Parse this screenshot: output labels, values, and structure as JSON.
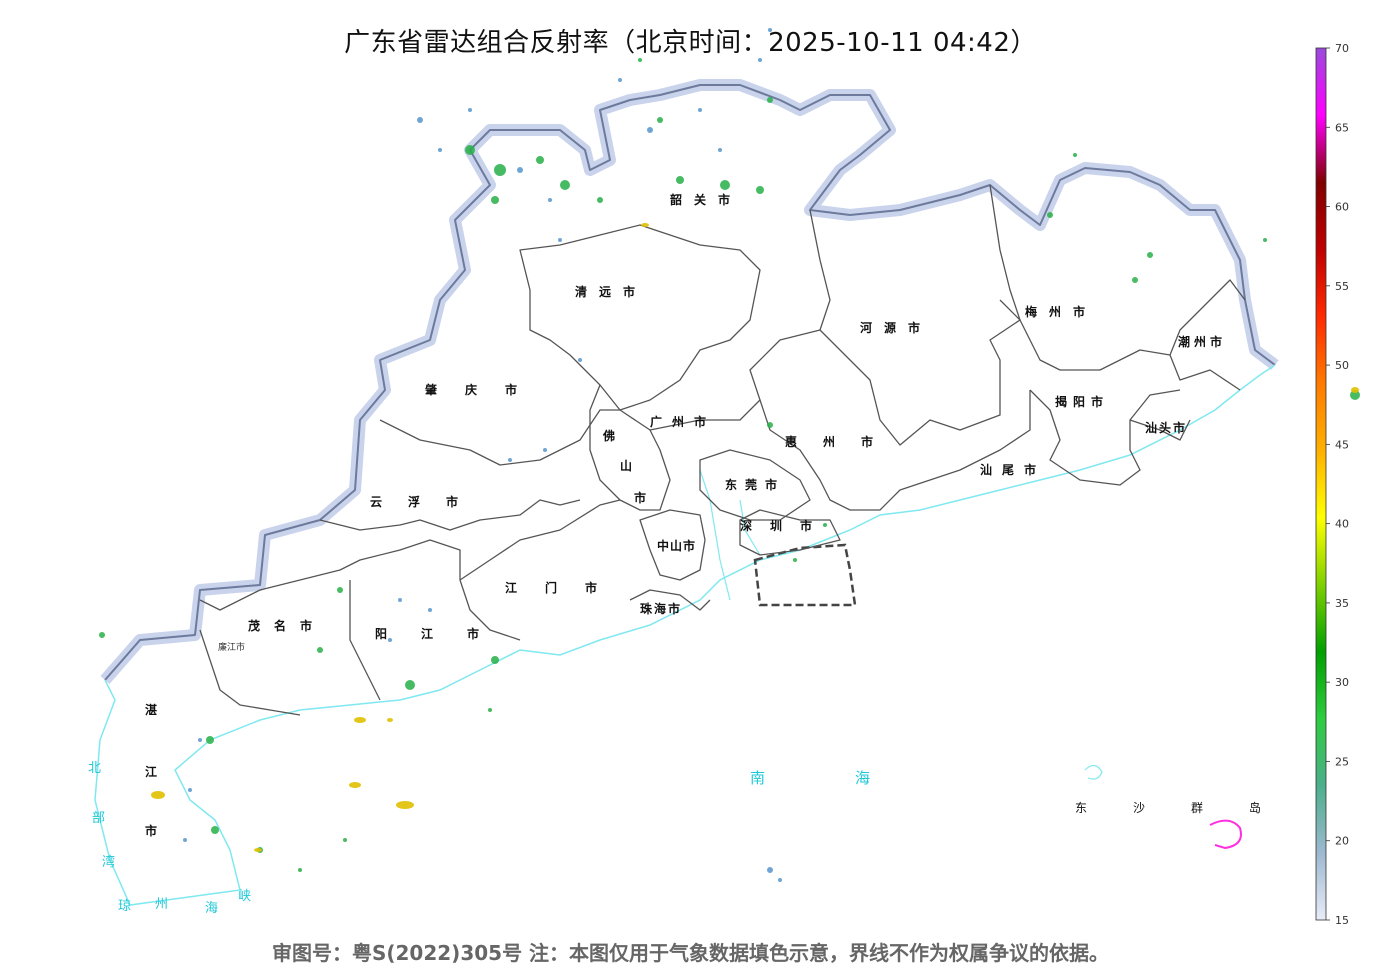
{
  "title": "广东省雷达组合反射率（北京时间：2025-10-11 04:42）",
  "footer": "审图号：粤S(2022)305号    注：本图仅用于气象数据填色示意，界线不作为权属争议的依据。",
  "cities": {
    "shaoguan": "韶关市",
    "qingyuan": "清远市",
    "heyuan": "河源市",
    "meizhou": "梅州市",
    "chaozhou": "潮州市",
    "jieyang": "揭阳市",
    "shantou": "汕头市",
    "shanwei": "汕尾市",
    "zhaoqing": "肇庆市",
    "guangzhou": "广州市",
    "huizhou": "惠州市",
    "foshan_1": "佛",
    "foshan_2": "山",
    "foshan_3": "市",
    "dongguan": "东莞市",
    "yunfu": "云浮市",
    "shenzhen": "深圳市",
    "zhongshan": "中山市",
    "jiangmen": "江门市",
    "zhuhai": "珠海市",
    "maoming": "茂名市",
    "yangjiang": "阳江市",
    "lianjiang": "廉江市",
    "zhanjiang_1": "湛",
    "zhanjiang_2": "江",
    "zhanjiang_3": "市"
  },
  "seas": {
    "south_china_sea": "南海",
    "dongsha": "东沙群岛",
    "qiongzhou_1": "琼",
    "qiongzhou_2": "州",
    "qiongzhou_3": "海",
    "qiongzhou_4": "峡",
    "beibu_1": "北",
    "beibu_2": "部",
    "beibu_3": "湾"
  },
  "colorbar": {
    "ticks": [
      "70",
      "65",
      "60",
      "55",
      "50",
      "45",
      "40",
      "35",
      "30",
      "25",
      "20",
      "15"
    ],
    "min": 15,
    "max": 70,
    "stops": [
      "#e8ecf8",
      "#9db8d0",
      "#4caf8c",
      "#2ecc40",
      "#00a000",
      "#7fd000",
      "#ffff00",
      "#ffb000",
      "#ff7a00",
      "#ff2a00",
      "#c00000",
      "#800000",
      "#ff00ff",
      "#9a4adc"
    ]
  },
  "colors": {
    "province_border": "#aab8dc",
    "city_border": "#555555",
    "coast": "#7fe8f0",
    "radar_light": "#4c8fc8",
    "radar_mid": "#28b048",
    "radar_strong": "#e0c000",
    "dongsha": "#ff30e0"
  }
}
